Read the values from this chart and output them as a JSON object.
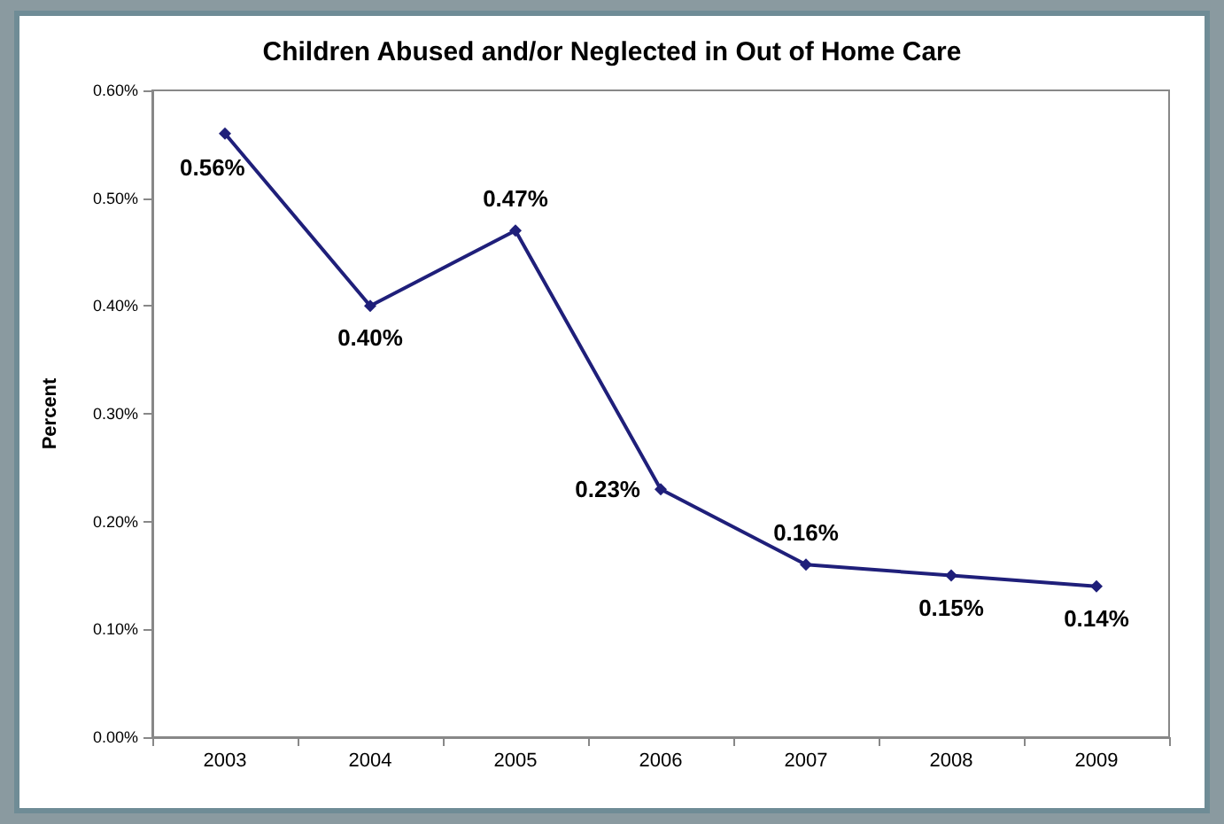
{
  "chart_data": {
    "type": "line",
    "title": "Children Abused and/or Neglected in Out of Home Care",
    "ylabel": "Percent",
    "categories": [
      "2003",
      "2004",
      "2005",
      "2006",
      "2007",
      "2008",
      "2009"
    ],
    "series": [
      {
        "color": "#1f1f7a",
        "values": [
          0.56,
          0.4,
          0.47,
          0.23,
          0.16,
          0.15,
          0.14
        ],
        "value_labels": [
          "0.56%",
          "0.40%",
          "0.47%",
          "0.23%",
          "0.16%",
          "0.15%",
          "0.14%"
        ]
      }
    ],
    "ylim": [
      0,
      0.6
    ],
    "yticks": [
      {
        "value": 0,
        "label": "0.00%"
      },
      {
        "value": 0.1,
        "label": "0.10%"
      },
      {
        "value": 0.2,
        "label": "0.20%"
      },
      {
        "value": 0.3,
        "label": "0.30%"
      },
      {
        "value": 0.4,
        "label": "0.40%"
      },
      {
        "value": 0.5,
        "label": "0.50%"
      },
      {
        "value": 0.6,
        "label": "0.60%"
      }
    ],
    "grid": false,
    "marker": "diamond",
    "line_style": "solid"
  }
}
